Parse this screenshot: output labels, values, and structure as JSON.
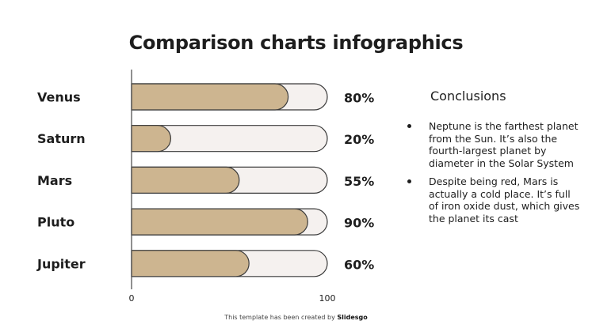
{
  "title": "Comparison charts infographics",
  "chart_data": {
    "type": "bar",
    "orientation": "horizontal",
    "categories": [
      "Venus",
      "Saturn",
      "Mars",
      "Pluto",
      "Jupiter"
    ],
    "values": [
      80,
      20,
      55,
      90,
      60
    ],
    "value_labels": [
      "80%",
      "20%",
      "55%",
      "90%",
      "60%"
    ],
    "xlim": [
      0,
      100
    ],
    "x_ticks": [
      "0",
      "100"
    ],
    "grid": false,
    "colors": {
      "fill": "#cdb590",
      "track": "#f5f1ef",
      "stroke": "#3a3a3a"
    }
  },
  "conclusions": {
    "title": "Conclusions",
    "items": [
      "Neptune is the farthest planet from the Sun. It’s also the fourth-largest planet by diameter in the Solar System",
      "Despite being red, Mars is actually a cold place. It’s full of iron oxide dust, which gives the planet its cast"
    ]
  },
  "footer": {
    "text": "This template has been created by ",
    "brand": "Slidesgo"
  }
}
